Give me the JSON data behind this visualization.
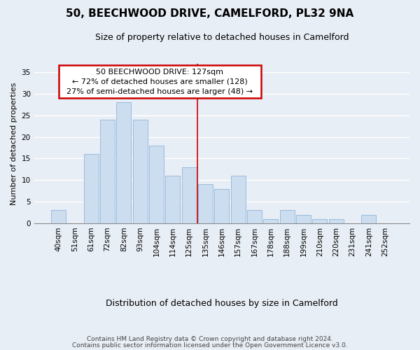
{
  "title": "50, BEECHWOOD DRIVE, CAMELFORD, PL32 9NA",
  "subtitle": "Size of property relative to detached houses in Camelford",
  "xlabel": "Distribution of detached houses by size in Camelford",
  "ylabel": "Number of detached properties",
  "bar_labels": [
    "40sqm",
    "51sqm",
    "61sqm",
    "72sqm",
    "82sqm",
    "93sqm",
    "104sqm",
    "114sqm",
    "125sqm",
    "135sqm",
    "146sqm",
    "157sqm",
    "167sqm",
    "178sqm",
    "188sqm",
    "199sqm",
    "210sqm",
    "220sqm",
    "231sqm",
    "241sqm",
    "252sqm"
  ],
  "bar_values": [
    3,
    0,
    16,
    24,
    28,
    24,
    18,
    11,
    13,
    9,
    8,
    11,
    3,
    1,
    3,
    2,
    1,
    1,
    0,
    2,
    0
  ],
  "bar_color": "#ccddf0",
  "bar_edge_color": "#99bbdd",
  "ylim": [
    0,
    37
  ],
  "yticks": [
    0,
    5,
    10,
    15,
    20,
    25,
    30,
    35
  ],
  "property_line_index": 8,
  "property_line_color": "#cc0000",
  "annotation_title": "50 BEECHWOOD DRIVE: 127sqm",
  "annotation_line1": "← 72% of detached houses are smaller (128)",
  "annotation_line2": "27% of semi-detached houses are larger (48) →",
  "annotation_box_facecolor": "#ffffff",
  "annotation_box_edgecolor": "#cc0000",
  "footer_line1": "Contains HM Land Registry data © Crown copyright and database right 2024.",
  "footer_line2": "Contains public sector information licensed under the Open Government Licence v3.0.",
  "background_color": "#e8eef5",
  "grid_color": "#ffffff",
  "title_fontsize": 11,
  "subtitle_fontsize": 9,
  "ylabel_fontsize": 8,
  "xlabel_fontsize": 9,
  "tick_fontsize": 7.5,
  "annotation_fontsize": 8,
  "footer_fontsize": 6.5
}
